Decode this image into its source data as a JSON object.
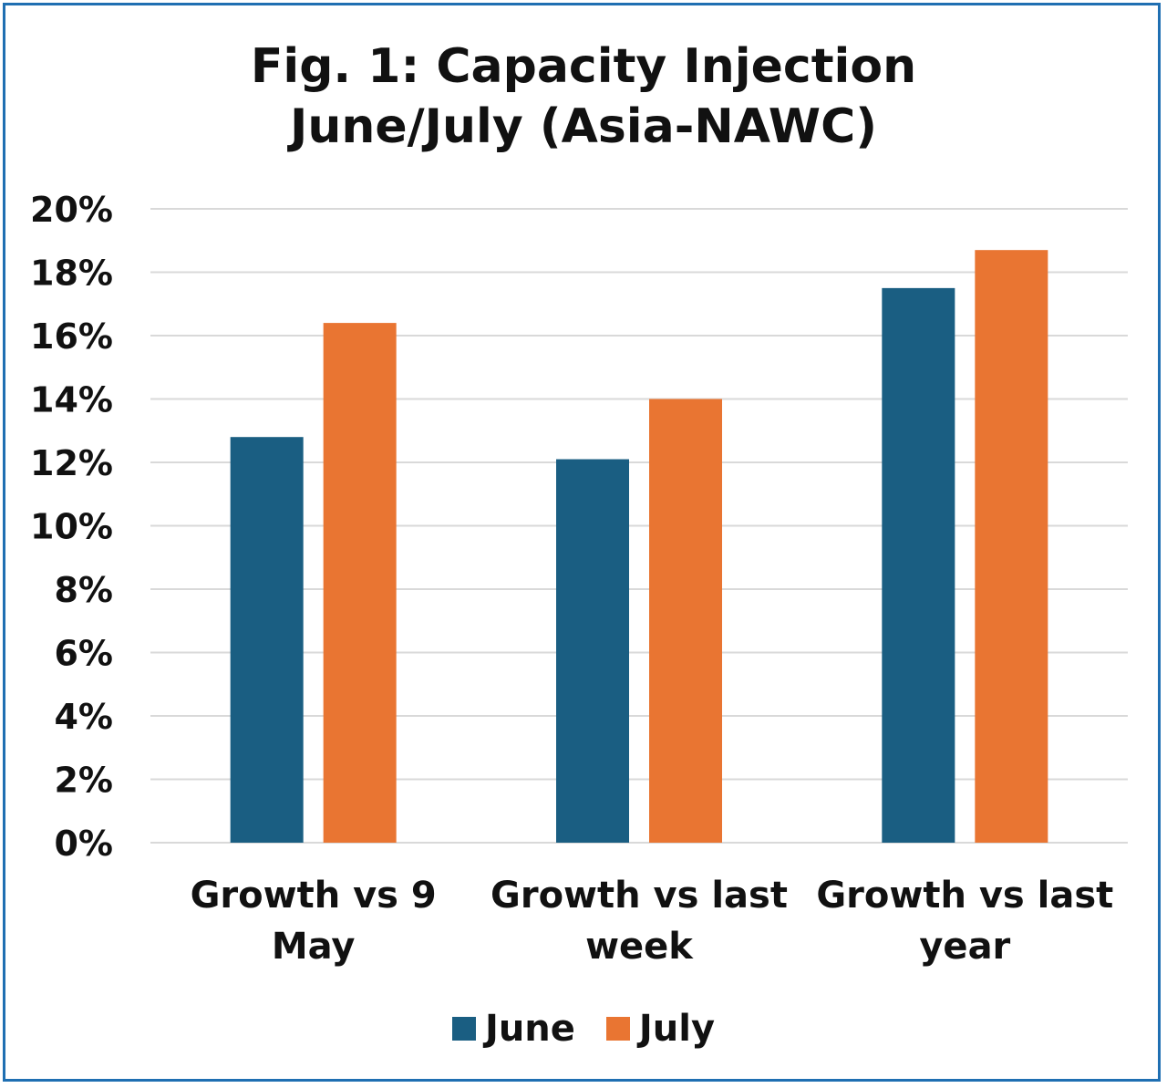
{
  "chart_data": {
    "type": "bar",
    "title_lines": [
      "Fig. 1: Capacity Injection",
      "June/July (Asia-NAWC)"
    ],
    "categories": [
      [
        "Growth vs 9",
        "May"
      ],
      [
        "Growth vs last",
        "week"
      ],
      [
        "Growth vs last",
        "year"
      ]
    ],
    "series": [
      {
        "name": "June",
        "color": "#1a5e82",
        "values": [
          12.8,
          12.1,
          17.5
        ]
      },
      {
        "name": "July",
        "color": "#e97532",
        "values": [
          16.4,
          14.0,
          18.7
        ]
      }
    ],
    "ylim": [
      0,
      20
    ],
    "yticks": [
      0,
      2,
      4,
      6,
      8,
      10,
      12,
      14,
      16,
      18,
      20
    ],
    "ytick_suffix": "%",
    "grid": true,
    "legend_position": "bottom"
  },
  "colors": {
    "border": "#1f6fb2",
    "grid": "#d9d9d9",
    "text": "#111111"
  }
}
